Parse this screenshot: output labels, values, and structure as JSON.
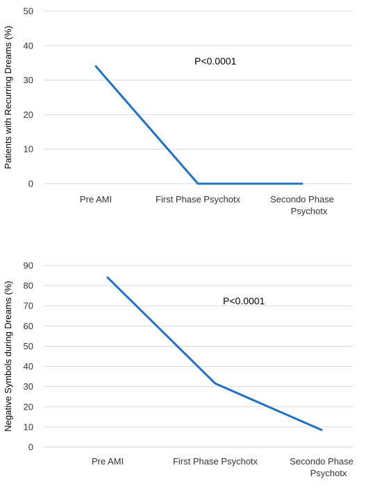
{
  "colors": {
    "series": "#1f6fc5",
    "grid": "#d9d9d9",
    "text": "#333333"
  },
  "chart_data": [
    {
      "type": "line",
      "title": "",
      "xlabel": "",
      "ylabel": "Patients with Recurring Dreams (%)",
      "ylim": [
        0,
        50
      ],
      "yticks": [
        "0",
        "10",
        "20",
        "30",
        "40",
        "50"
      ],
      "grid": true,
      "categories": [
        [
          "Pre AMI"
        ],
        [
          "First Phase Psychotx"
        ],
        [
          "Secondo Phase",
          "Psychotx"
        ]
      ],
      "series": [
        {
          "values": [
            34,
            0,
            0
          ]
        }
      ],
      "annotation": "P<0.0001"
    },
    {
      "type": "line",
      "title": "",
      "xlabel": "",
      "ylabel": "Negative Symbols during Dreams (%)",
      "ylim": [
        0,
        90
      ],
      "yticks": [
        "0",
        "10",
        "20",
        "30",
        "40",
        "50",
        "60",
        "70",
        "80",
        "90"
      ],
      "grid": true,
      "categories": [
        [
          "Pre AMI"
        ],
        [
          "First Phase Psychotx"
        ],
        [
          "Secondo Phase",
          "Psychotx"
        ]
      ],
      "series": [
        {
          "values": [
            84,
            31.5,
            8.5
          ]
        }
      ],
      "annotation": "P<0.0001"
    }
  ]
}
